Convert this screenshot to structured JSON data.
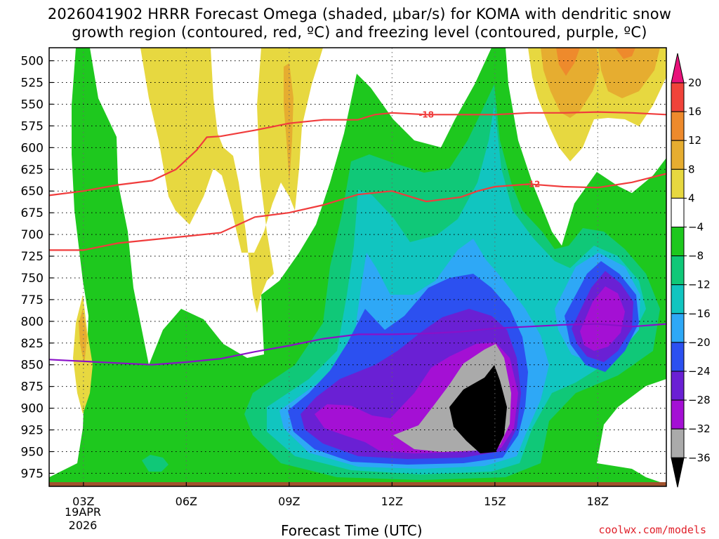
{
  "title": {
    "line1": "2026041902 HRRR Forecast Omega (shaded, μbar/s) for KOMA with dendritic snow",
    "line2": "growth region (contoured, red, ºC) and freezing level (contoured, purple, ºC)"
  },
  "credit": "coolwx.com/models",
  "chart_data": {
    "type": "contour",
    "xlabel": "Forecast Time (UTC)",
    "ylabel": "",
    "x_ticks": [
      "03Z",
      "06Z",
      "09Z",
      "12Z",
      "15Z",
      "18Z"
    ],
    "x_tick_hours": [
      3,
      6,
      9,
      12,
      15,
      18
    ],
    "x_range_hours": [
      2,
      20
    ],
    "date_label": [
      "19APR",
      "2026"
    ],
    "y_ticks": [
      500,
      525,
      550,
      575,
      600,
      625,
      650,
      675,
      700,
      725,
      750,
      775,
      800,
      825,
      850,
      875,
      900,
      925,
      950,
      975
    ],
    "y_range": [
      485,
      990
    ],
    "y_scale": "pressure (inverted)",
    "grid": true,
    "colorbar": {
      "levels": [
        20,
        16,
        12,
        8,
        4,
        -4,
        -8,
        -12,
        -16,
        -20,
        -24,
        -28,
        -32,
        -36
      ],
      "colors": {
        "gt20": "#e8127a",
        "16_20": "#f0433a",
        "12_16": "#ee8a2c",
        "8_12": "#e6ad30",
        "4_8": "#e7d840",
        "n4_4": "#ffffff",
        "n8_n4": "#1ec81e",
        "n12_n8": "#10c878",
        "n16_n12": "#11c5c0",
        "n20_n16": "#2ea8f6",
        "n24_n20": "#2c50f0",
        "n28_n24": "#6a20d4",
        "n32_n28": "#a410d4",
        "n36_n32": "#aaaaaa",
        "lt36": "#000000"
      }
    },
    "contour_lines": [
      {
        "label": "-18",
        "color": "#f03c3c",
        "points": [
          [
            2,
            655
          ],
          [
            3,
            650
          ],
          [
            4,
            643
          ],
          [
            5,
            638
          ],
          [
            5.7,
            625
          ],
          [
            6.3,
            603
          ],
          [
            6.6,
            588
          ],
          [
            7,
            587
          ],
          [
            8,
            580
          ],
          [
            9,
            572
          ],
          [
            10,
            568
          ],
          [
            11,
            568
          ],
          [
            11.5,
            562
          ],
          [
            12,
            560
          ],
          [
            13,
            562
          ],
          [
            14,
            562
          ],
          [
            15,
            562
          ],
          [
            16,
            560
          ],
          [
            17,
            560
          ],
          [
            18,
            559
          ],
          [
            19,
            560
          ],
          [
            20,
            562
          ]
        ],
        "label_hour": 13
      },
      {
        "label": "-12",
        "color": "#f03c3c",
        "points": [
          [
            2,
            718
          ],
          [
            3,
            718
          ],
          [
            4,
            710
          ],
          [
            5,
            706
          ],
          [
            6,
            702
          ],
          [
            7,
            698
          ],
          [
            8,
            680
          ],
          [
            9,
            675
          ],
          [
            10,
            666
          ],
          [
            11,
            654
          ],
          [
            12,
            650
          ],
          [
            13,
            662
          ],
          [
            14,
            657
          ],
          [
            14.5,
            650
          ],
          [
            15,
            645
          ],
          [
            16,
            642
          ],
          [
            17,
            645
          ],
          [
            18,
            646
          ],
          [
            19,
            640
          ],
          [
            20,
            630
          ]
        ],
        "label_hour": 16.1
      },
      {
        "label": "",
        "color": "#8a10c8",
        "points": [
          [
            2,
            844
          ],
          [
            3,
            846
          ],
          [
            4,
            848
          ],
          [
            5,
            850
          ],
          [
            6,
            847
          ],
          [
            7,
            843
          ],
          [
            8,
            835
          ],
          [
            9,
            828
          ],
          [
            10,
            820
          ],
          [
            11,
            815
          ],
          [
            12,
            815
          ],
          [
            13,
            814
          ],
          [
            14,
            812
          ],
          [
            15,
            808
          ],
          [
            16,
            806
          ],
          [
            17,
            804
          ],
          [
            18,
            803
          ],
          [
            19,
            806
          ],
          [
            20,
            803
          ]
        ]
      }
    ]
  }
}
